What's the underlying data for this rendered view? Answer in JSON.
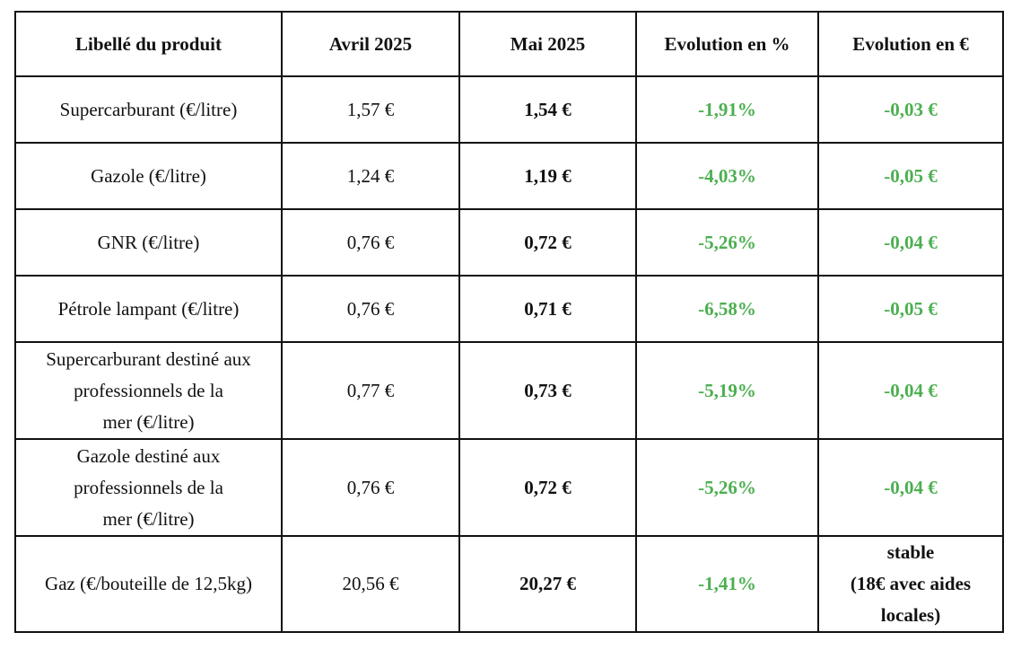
{
  "headers": [
    "Libellé du produit",
    "Avril 2025",
    "Mai 2025",
    "Evolution en %",
    "Evolution en €"
  ],
  "rows": [
    {
      "product": [
        "Supercarburant (€/litre)"
      ],
      "april": "1,57 €",
      "may": "1,54 €",
      "evo_pct": "-1,91%",
      "evo_eur": [
        "-0,03 €"
      ]
    },
    {
      "product": [
        "Gazole (€/litre)"
      ],
      "april": "1,24 €",
      "may": "1,19 €",
      "evo_pct": "-4,03%",
      "evo_eur": [
        "-0,05 €"
      ]
    },
    {
      "product": [
        "GNR (€/litre)"
      ],
      "april": "0,76 €",
      "may": "0,72 €",
      "evo_pct": "-5,26%",
      "evo_eur": [
        "-0,04 €"
      ]
    },
    {
      "product": [
        "Pétrole lampant (€/litre)"
      ],
      "april": "0,76 €",
      "may": "0,71 €",
      "evo_pct": "-6,58%",
      "evo_eur": [
        "-0,05 €"
      ]
    },
    {
      "product": [
        "Supercarburant destiné aux",
        "professionnels de la",
        "mer (€/litre)"
      ],
      "april": "0,77 €",
      "may": "0,73 €",
      "evo_pct": "-5,19%",
      "evo_eur": [
        "-0,04 €"
      ]
    },
    {
      "product": [
        "Gazole destiné aux",
        "professionnels de la",
        "mer (€/litre)"
      ],
      "april": "0,76 €",
      "may": "0,72 €",
      "evo_pct": "-5,26%",
      "evo_eur": [
        "-0,04 €"
      ]
    },
    {
      "product": [
        "Gaz (€/bouteille de 12,5kg)"
      ],
      "april": "20,56 €",
      "may": "20,27 €",
      "evo_pct": "-1,41%",
      "evo_eur": [
        "stable",
        "(18€ avec aides",
        "locales)"
      ]
    }
  ],
  "colors": {
    "decrease": "#4caf50",
    "border": "#111111",
    "text": "#111111"
  }
}
